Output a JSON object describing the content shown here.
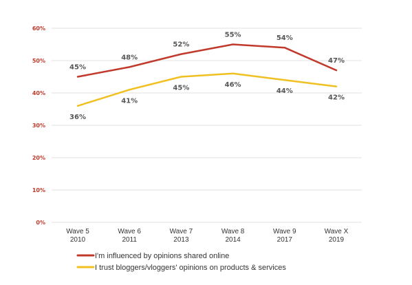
{
  "chart_data": {
    "type": "line",
    "categories": [
      [
        "Wave 5",
        "2010"
      ],
      [
        "Wave 6",
        "2011"
      ],
      [
        "Wave 7",
        "2013"
      ],
      [
        "Wave 8",
        "2014"
      ],
      [
        "Wave 9",
        "2017"
      ],
      [
        "Wave X",
        "2019"
      ]
    ],
    "series": [
      {
        "name": "I'm influenced by opinions shared online",
        "values": [
          45,
          48,
          52,
          55,
          54,
          47
        ],
        "labels": [
          "45%",
          "48%",
          "52%",
          "55%",
          "54%",
          "47%"
        ],
        "color": "#c0392b"
      },
      {
        "name": "I trust bloggers/vloggers' opinions on products & services",
        "values": [
          36,
          41,
          45,
          46,
          44,
          42
        ],
        "labels": [
          "36%",
          "41%",
          "45%",
          "46%",
          "44%",
          "42%"
        ],
        "color": "#f0c020"
      }
    ],
    "yticks": [
      0,
      10,
      20,
      30,
      40,
      50,
      60
    ],
    "ytick_labels": [
      "0%",
      "10%",
      "20%",
      "30%",
      "40%",
      "50%",
      "60%"
    ],
    "ylim": [
      0,
      60
    ],
    "grid": true,
    "legend_position": "bottom",
    "colors": {
      "ytick_label": "#c0392b",
      "grid": "#e2e2e2"
    }
  }
}
